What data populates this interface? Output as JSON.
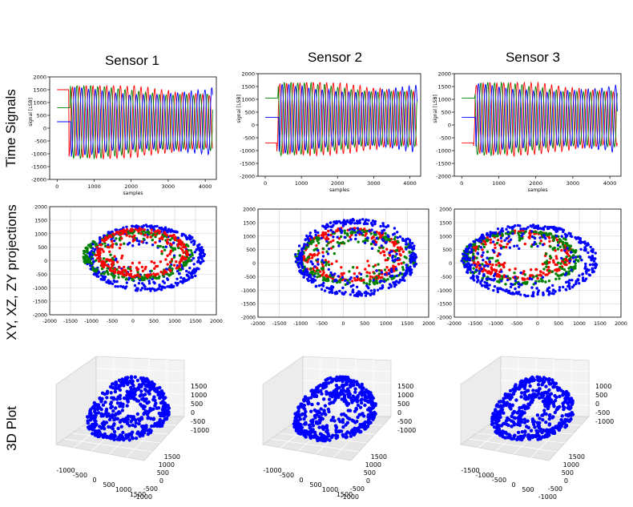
{
  "columns": [
    "Sensor 1",
    "Sensor 2",
    "Sensor 3"
  ],
  "rows": [
    "Time Signals",
    "XY, XZ, ZY projections",
    "3D Plot"
  ],
  "colors": {
    "x": "#ff0000",
    "y": "#008000",
    "z": "#0000ff",
    "grid": "#d0d0d0"
  },
  "chart_data": [
    {
      "type": "line",
      "sensor": "Sensor 1",
      "xlabel": "samples",
      "ylabel": "signal [LSB]",
      "xlim": [
        -200,
        4300
      ],
      "ylim": [
        -2000,
        2000
      ],
      "xticks": [
        0,
        1000,
        2000,
        3000,
        4000
      ],
      "yticks": [
        -2000,
        -1500,
        -1000,
        -500,
        0,
        500,
        1000,
        1500,
        2000
      ],
      "grid": false,
      "series": [
        {
          "color": "red",
          "start_level": 1500
        },
        {
          "color": "green",
          "start_level": 800
        },
        {
          "color": "blue",
          "start_level": 250
        }
      ]
    },
    {
      "type": "line",
      "sensor": "Sensor 2",
      "xlabel": "samples",
      "ylabel": "signal [LSB]",
      "xlim": [
        -200,
        4300
      ],
      "ylim": [
        -2000,
        2000
      ],
      "xticks": [
        0,
        1000,
        2000,
        3000,
        4000
      ],
      "yticks": [
        -2000,
        -1500,
        -1000,
        -500,
        0,
        500,
        1000,
        1500,
        2000
      ],
      "grid": false,
      "series": [
        {
          "color": "red",
          "start_level": -700
        },
        {
          "color": "green",
          "start_level": 1050
        },
        {
          "color": "blue",
          "start_level": 300
        }
      ]
    },
    {
      "type": "line",
      "sensor": "Sensor 3",
      "xlabel": "samples",
      "ylabel": "signal [LSB]",
      "xlim": [
        -200,
        4300
      ],
      "ylim": [
        -2000,
        2000
      ],
      "xticks": [
        0,
        1000,
        2000,
        3000,
        4000
      ],
      "yticks": [
        -2000,
        -1500,
        -1000,
        -500,
        0,
        500,
        1000,
        1500,
        2000
      ],
      "grid": false,
      "series": [
        {
          "color": "red",
          "start_level": -700
        },
        {
          "color": "green",
          "start_level": 1050
        },
        {
          "color": "blue",
          "start_level": 300
        }
      ]
    },
    {
      "type": "scatter",
      "sensor": "Sensor 1",
      "xlim": [
        -2000,
        2000
      ],
      "ylim": [
        -2000,
        2000
      ],
      "xticks": [
        -2000,
        -1500,
        -1000,
        -500,
        0,
        500,
        1000,
        1500,
        2000
      ],
      "yticks": [
        -2000,
        -1500,
        -1000,
        -500,
        0,
        500,
        1000,
        1500,
        2000
      ],
      "grid": true,
      "series": [
        {
          "color": "red",
          "center": [
            200,
            300
          ],
          "radius": [
            1100,
            900
          ]
        },
        {
          "color": "green",
          "center": [
            100,
            200
          ],
          "radius": [
            1300,
            900
          ]
        },
        {
          "color": "blue",
          "center": [
            300,
            100
          ],
          "radius": [
            1400,
            1200
          ]
        }
      ]
    },
    {
      "type": "scatter",
      "sensor": "Sensor 2",
      "xlim": [
        -2000,
        2000
      ],
      "ylim": [
        -2000,
        2000
      ],
      "xticks": [
        -2000,
        -1500,
        -1000,
        -500,
        0,
        500,
        1000,
        1500,
        2000
      ],
      "yticks": [
        -2000,
        -1500,
        -1000,
        -500,
        0,
        500,
        1000,
        1500,
        2000
      ],
      "grid": true,
      "series": [
        {
          "color": "red",
          "center": [
            200,
            300
          ],
          "radius": [
            1200,
            1000
          ]
        },
        {
          "color": "green",
          "center": [
            300,
            200
          ],
          "radius": [
            1400,
            1000
          ]
        },
        {
          "color": "blue",
          "center": [
            300,
            200
          ],
          "radius": [
            1400,
            1400
          ]
        }
      ]
    },
    {
      "type": "scatter",
      "sensor": "Sensor 3",
      "xlim": [
        -2000,
        2000
      ],
      "ylim": [
        -2000,
        2000
      ],
      "xticks": [
        -2000,
        -1500,
        -1000,
        -500,
        0,
        500,
        1000,
        1500,
        2000
      ],
      "yticks": [
        -2000,
        -1500,
        -1000,
        -500,
        0,
        500,
        1000,
        1500,
        2000
      ],
      "grid": true,
      "series": [
        {
          "color": "red",
          "center": [
            -400,
            300
          ],
          "radius": [
            1200,
            900
          ]
        },
        {
          "color": "green",
          "center": [
            -400,
            200
          ],
          "radius": [
            1400,
            1000
          ]
        },
        {
          "color": "blue",
          "center": [
            -200,
            100
          ],
          "radius": [
            1600,
            1300
          ]
        }
      ]
    },
    {
      "type": "scatter",
      "sensor": "Sensor 1",
      "zticks": [
        1500,
        1000,
        500,
        0,
        -500,
        -1000
      ],
      "xticks": [
        -1000,
        -500,
        0,
        500,
        1000,
        1500
      ],
      "yticks": [
        1500,
        1000,
        500,
        0,
        -500,
        -1000
      ],
      "series": [
        {
          "color": "blue"
        }
      ]
    },
    {
      "type": "scatter",
      "sensor": "Sensor 2",
      "zticks": [
        1500,
        1000,
        500,
        0,
        -500,
        -1000
      ],
      "xticks": [
        -1000,
        -500,
        0,
        500,
        1000,
        1500
      ],
      "yticks": [
        1500,
        1000,
        500,
        0,
        -500,
        -1000
      ],
      "series": [
        {
          "color": "blue"
        }
      ]
    },
    {
      "type": "scatter",
      "sensor": "Sensor 3",
      "zticks": [
        1000,
        500,
        0,
        -500,
        -1000
      ],
      "xticks": [
        -1500,
        -1000,
        -500,
        0,
        500
      ],
      "yticks": [
        1500,
        1000,
        500,
        0,
        -500,
        -1000
      ],
      "series": [
        {
          "color": "blue"
        }
      ]
    }
  ]
}
